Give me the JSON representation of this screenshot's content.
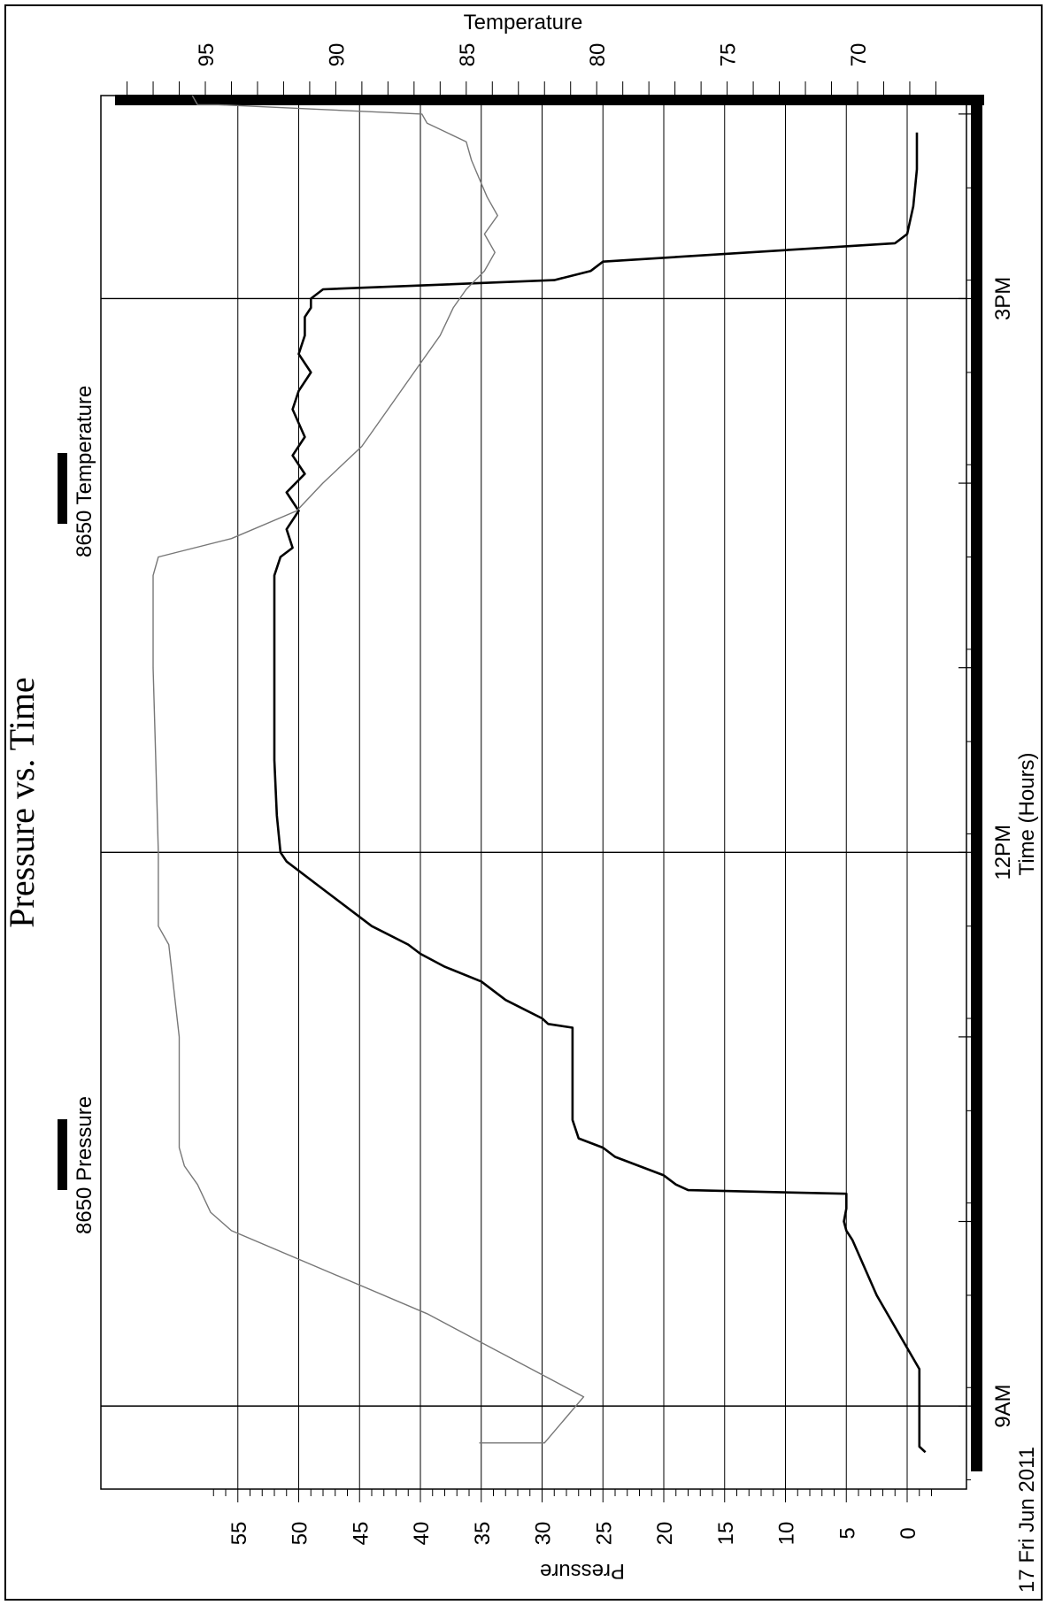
{
  "chart_data": {
    "type": "line",
    "title": "Pressure vs. Time",
    "xlabel": "Time (Hours)",
    "ylabel": "Pressure",
    "y2label": "Temperature",
    "date_label": "17 Fri Jun 2011",
    "x_ticks": [
      {
        "hour": 9,
        "label": "9AM"
      },
      {
        "hour": 12,
        "label": "12PM"
      },
      {
        "hour": 15,
        "label": "3PM"
      }
    ],
    "xlim_hours": [
      8.55,
      16.1
    ],
    "ylim": [
      -4,
      57.5
    ],
    "y_ticks": [
      0,
      5,
      10,
      15,
      20,
      25,
      30,
      35,
      40,
      45,
      50,
      55
    ],
    "y2lim": [
      66.5,
      99
    ],
    "y2_ticks": [
      70,
      75,
      80,
      85,
      90,
      95
    ],
    "grid": true,
    "legend_position": "top",
    "series": [
      {
        "name": "8650 Pressure",
        "axis": "pressure",
        "color": "#000000",
        "points": [
          [
            8.75,
            -1.5
          ],
          [
            8.78,
            -1.0
          ],
          [
            9.0,
            -1.0
          ],
          [
            9.2,
            -1.0
          ],
          [
            9.6,
            2.5
          ],
          [
            9.9,
            4.5
          ],
          [
            9.95,
            5.0
          ],
          [
            10.0,
            5.2
          ],
          [
            10.07,
            5.0
          ],
          [
            10.15,
            5.0
          ],
          [
            10.17,
            18.0
          ],
          [
            10.2,
            19.0
          ],
          [
            10.25,
            20.0
          ],
          [
            10.35,
            24.0
          ],
          [
            10.4,
            25.0
          ],
          [
            10.45,
            27.0
          ],
          [
            10.55,
            27.5
          ],
          [
            10.9,
            27.5
          ],
          [
            11.05,
            27.5
          ],
          [
            11.07,
            29.5
          ],
          [
            11.1,
            30.0
          ],
          [
            11.2,
            33.0
          ],
          [
            11.3,
            35.0
          ],
          [
            11.38,
            38.0
          ],
          [
            11.45,
            40.0
          ],
          [
            11.5,
            41.0
          ],
          [
            11.6,
            44.0
          ],
          [
            11.8,
            48.0
          ],
          [
            11.95,
            51.0
          ],
          [
            12.0,
            51.5
          ],
          [
            12.2,
            51.8
          ],
          [
            12.5,
            52.0
          ],
          [
            13.0,
            52.0
          ],
          [
            13.5,
            52.0
          ],
          [
            13.6,
            51.5
          ],
          [
            13.65,
            50.5
          ],
          [
            13.75,
            51.0
          ],
          [
            13.85,
            50.0
          ],
          [
            13.95,
            51.0
          ],
          [
            14.05,
            49.5
          ],
          [
            14.15,
            50.5
          ],
          [
            14.25,
            49.5
          ],
          [
            14.4,
            50.5
          ],
          [
            14.5,
            50.0
          ],
          [
            14.6,
            49.0
          ],
          [
            14.7,
            50.0
          ],
          [
            14.8,
            49.5
          ],
          [
            14.9,
            49.5
          ],
          [
            14.95,
            49.0
          ],
          [
            15.0,
            49.0
          ],
          [
            15.05,
            48.0
          ],
          [
            15.1,
            29.0
          ],
          [
            15.15,
            26.0
          ],
          [
            15.2,
            25.0
          ],
          [
            15.3,
            1.0
          ],
          [
            15.35,
            0.0
          ],
          [
            15.5,
            -0.5
          ],
          [
            15.7,
            -0.8
          ],
          [
            15.9,
            -0.8
          ]
        ]
      },
      {
        "name": "8650 Temperature",
        "axis": "temperature",
        "color": "#777777",
        "points": [
          [
            8.8,
            84.5
          ],
          [
            8.8,
            82.0
          ],
          [
            9.05,
            80.5
          ],
          [
            9.5,
            86.5
          ],
          [
            9.95,
            94.0
          ],
          [
            10.05,
            94.8
          ],
          [
            10.2,
            95.3
          ],
          [
            10.3,
            95.8
          ],
          [
            10.4,
            96.0
          ],
          [
            11.0,
            96.0
          ],
          [
            11.5,
            96.4
          ],
          [
            11.6,
            96.8
          ],
          [
            11.75,
            96.8
          ],
          [
            12.0,
            96.8
          ],
          [
            12.5,
            96.9
          ],
          [
            13.0,
            97.0
          ],
          [
            13.5,
            97.0
          ],
          [
            13.6,
            96.8
          ],
          [
            13.7,
            94.0
          ],
          [
            13.85,
            91.5
          ],
          [
            14.0,
            90.5
          ],
          [
            14.2,
            89.0
          ],
          [
            14.4,
            88.0
          ],
          [
            14.6,
            87.0
          ],
          [
            14.8,
            86.0
          ],
          [
            14.95,
            85.5
          ],
          [
            15.05,
            85.0
          ],
          [
            15.15,
            84.3
          ],
          [
            15.25,
            83.9
          ],
          [
            15.35,
            84.3
          ],
          [
            15.45,
            83.8
          ],
          [
            15.55,
            84.2
          ],
          [
            15.65,
            84.5
          ],
          [
            15.75,
            84.8
          ],
          [
            15.85,
            85.0
          ],
          [
            15.95,
            86.5
          ],
          [
            16.0,
            86.7
          ],
          [
            16.05,
            94.5
          ],
          [
            16.05,
            95.3
          ],
          [
            16.1,
            95.5
          ]
        ]
      }
    ]
  }
}
